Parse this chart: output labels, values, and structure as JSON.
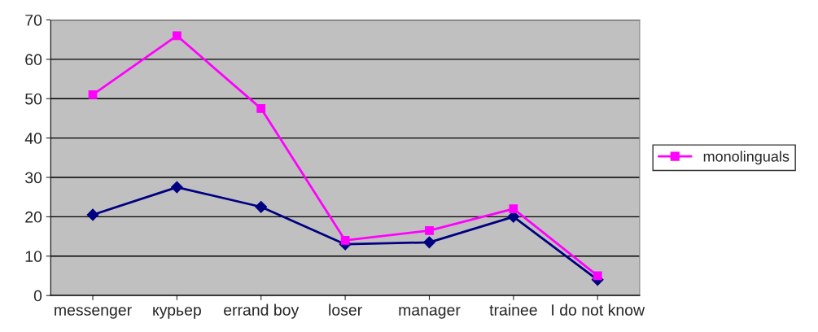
{
  "chart_data": {
    "type": "line",
    "categories": [
      "messenger",
      "курьер",
      "errand boy",
      "loser",
      "manager",
      "trainee",
      "I do not know"
    ],
    "series": [
      {
        "name": "monolinguals",
        "color": "#ff00ff",
        "marker": "square",
        "values": [
          51,
          66,
          47.5,
          14,
          16.5,
          22,
          5
        ]
      },
      {
        "color": "#000080",
        "marker": "diamond",
        "values": [
          20.5,
          27.5,
          22.5,
          13,
          13.5,
          20,
          4
        ]
      }
    ],
    "ylim": [
      0,
      70
    ],
    "yticks": [
      0,
      10,
      20,
      30,
      40,
      50,
      60,
      70
    ],
    "grid": "y",
    "legend": "right"
  }
}
